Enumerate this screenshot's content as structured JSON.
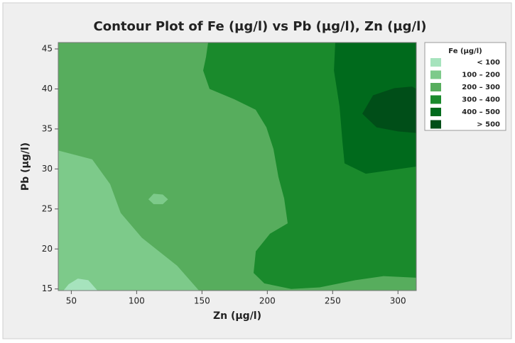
{
  "chart_data": {
    "type": "contour",
    "title": "Contour Plot of Fe (µg/l) vs Pb (µg/l), Zn (µg/l)",
    "x_label": "Zn (µg/l)",
    "y_label": "Pb (µg/l)",
    "xlim": [
      40,
      314
    ],
    "ylim": [
      14.8,
      45.8
    ],
    "xticks": [
      50,
      100,
      150,
      200,
      250,
      300
    ],
    "yticks": [
      15,
      20,
      25,
      30,
      35,
      40,
      45
    ],
    "legend_title": "Fe (µg/l)",
    "legend_position": "right",
    "levels": [
      {
        "label": "< 100",
        "color": "#a6e3bd",
        "regions": [
          {
            "x": [
              44,
              48,
              55,
              63,
              70
            ],
            "y": [
              14.8,
              15.6,
              16.3,
              16.1,
              14.8
            ]
          }
        ]
      },
      {
        "label": "100 – 200",
        "color": "#7dca8a",
        "regions": [
          {
            "x": [
              40,
              40,
              66,
              79.7,
              87.8,
              104,
              131,
              147.7
            ],
            "y": [
              14.8,
              32.3,
              31.2,
              28.1,
              24.5,
              21.4,
              17.9,
              14.8
            ]
          },
          {
            "x": [
              109,
              113,
              120,
              124,
              120,
              113
            ],
            "y": [
              26.2,
              26.9,
              26.8,
              26.2,
              25.6,
              25.6
            ]
          }
        ]
      },
      {
        "label": "200 – 300",
        "color": "#57ad5d",
        "regions": [
          {
            "x": [
              40,
              40,
              314,
              314
            ],
            "y": [
              14.8,
              45.8,
              45.8,
              14.8
            ]
          }
        ]
      },
      {
        "label": "300 – 400",
        "color": "#1a8a2c",
        "regions": [
          {
            "x": [
              154.7,
              153.1,
              150.9,
              155.8,
              174.8,
              191.1,
              199.3,
              204.7,
              208.5,
              212.9,
              215.6,
              202,
              191.2,
              189.5,
              197.7,
              218.3,
              240.1,
              267.3,
              289,
              314,
              314
            ],
            "y": [
              45.8,
              44.0,
              42.3,
              40.0,
              38.7,
              37.4,
              35.2,
              32.5,
              29.0,
              26.3,
              23.2,
              21.9,
              19.7,
              17.0,
              15.7,
              15.0,
              15.2,
              16.1,
              16.6,
              16.4,
              45.8
            ]
          }
        ]
      },
      {
        "label": "400 – 500",
        "color": "#006a1c",
        "regions": [
          {
            "x": [
              252,
              251,
              255.3,
              257.5,
              259.1,
              275.4,
              314,
              314
            ],
            "y": [
              45.8,
              42.3,
              37.8,
              33.4,
              30.7,
              29.4,
              30.3,
              45.8
            ]
          }
        ]
      },
      {
        "label": "> 500",
        "color": "#004e18",
        "regions": [
          {
            "x": [
              272.7,
              280.9,
              297.2,
              310.8,
              314,
              314,
              299.9,
              283.6
            ],
            "y": [
              36.9,
              39.2,
              40.1,
              40.3,
              40.0,
              34.5,
              34.7,
              35.2
            ]
          }
        ]
      }
    ]
  }
}
